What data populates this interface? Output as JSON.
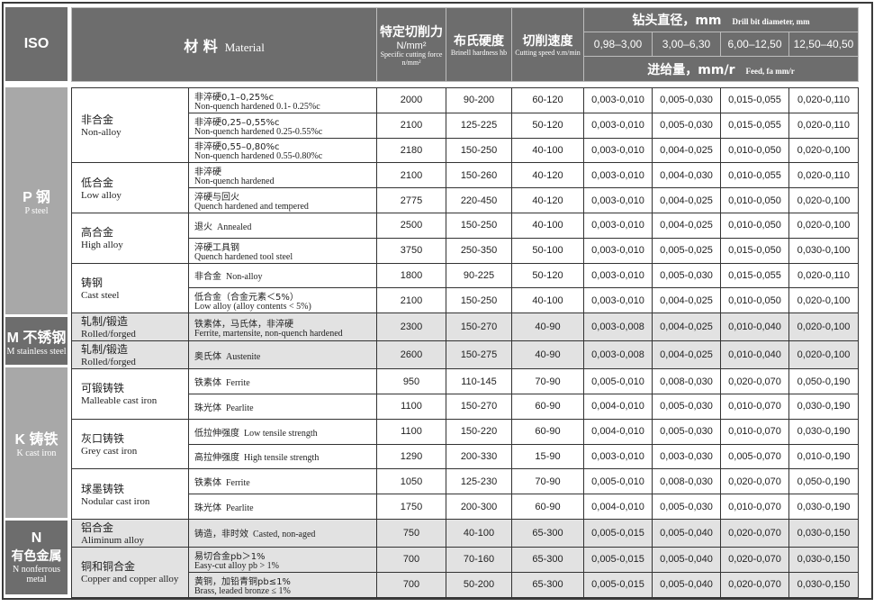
{
  "header": {
    "iso": "ISO",
    "material_zh": "材 料",
    "material_en": "Material",
    "force_zh": "特定切削力",
    "force_unit": "N/mm²",
    "force_en": "Specific cutting force n/mm²",
    "hb_zh": "布氏硬度",
    "hb_en": "Brinell hardness hb",
    "speed_zh": "切削速度",
    "speed_en": "Cutting speed v.m/min",
    "drill_zh": "钻头直径，mm",
    "drill_en": "Drill bit diameter, mm",
    "diameters": [
      "0,98–3,00",
      "3,00–6,30",
      "6,00–12,50",
      "12,50–40,50"
    ],
    "feed_zh": "进给量，mm/r",
    "feed_en": "Feed, fa mm/r"
  },
  "colors": {
    "header_bg": "#6d6d6d",
    "iso_light": "#a8a8a8",
    "shade_row": "#e2e2e2"
  },
  "iso_groups": [
    {
      "code": "P 钢",
      "sub": "P steel",
      "style": "light",
      "materials": [
        {
          "zh": "非合金",
          "en": "Non-alloy",
          "rows": [
            {
              "zh": "非淬硬0,1–0,25%c",
              "en": "Non-quench hardened 0.1- 0.25%c",
              "force": "2000",
              "hb": "90-200",
              "speed": "60-120",
              "feeds": [
                "0,003-0,010",
                "0,005-0,030",
                "0,015-0,055",
                "0,020-0,110"
              ]
            },
            {
              "zh": "非淬硬0,25–0,55%c",
              "en": "Non-quench hardened 0.25-0.55%c",
              "force": "2100",
              "hb": "125-225",
              "speed": "50-120",
              "feeds": [
                "0,003-0,010",
                "0,005-0,030",
                "0,015-0,055",
                "0,020-0,110"
              ]
            },
            {
              "zh": "非淬硬0,55–0,80%c",
              "en": "Non-quench hardened 0.55-0.80%c",
              "force": "2180",
              "hb": "150-250",
              "speed": "40-100",
              "feeds": [
                "0,003-0,010",
                "0,004-0,025",
                "0,010-0,050",
                "0,020-0,100"
              ]
            }
          ]
        },
        {
          "zh": "低合金",
          "en": "Low alloy",
          "rows": [
            {
              "zh": "非淬硬",
              "en": "Non-quench hardened",
              "force": "2100",
              "hb": "150-260",
              "speed": "40-120",
              "feeds": [
                "0,003-0,010",
                "0,004-0,030",
                "0,010-0,055",
                "0,020-0,110"
              ]
            },
            {
              "zh": "淬硬与回火",
              "en": "Quench hardened and tempered",
              "force": "2775",
              "hb": "220-450",
              "speed": "40-120",
              "feeds": [
                "0,003-0,010",
                "0,004-0,025",
                "0,010-0,050",
                "0,020-0,100"
              ]
            }
          ]
        },
        {
          "zh": "高合金",
          "en": "High alloy",
          "rows": [
            {
              "zh": "退火",
              "en": "Annealed",
              "inline": true,
              "force": "2500",
              "hb": "150-250",
              "speed": "40-100",
              "feeds": [
                "0,003-0,010",
                "0,004-0,025",
                "0,010-0,050",
                "0,020-0,100"
              ]
            },
            {
              "zh": "淬硬工具钢",
              "en": "Quench hardened tool steel",
              "force": "3750",
              "hb": "250-350",
              "speed": "50-100",
              "feeds": [
                "0,003-0,010",
                "0,005-0,025",
                "0,015-0,050",
                "0,030-0,100"
              ]
            }
          ]
        },
        {
          "zh": "铸钢",
          "en": "Cast steel",
          "rows": [
            {
              "zh": "非合金",
              "en": "Non-alloy",
              "inline": true,
              "force": "1800",
              "hb": "90-225",
              "speed": "50-120",
              "feeds": [
                "0,003-0,010",
                "0,005-0,030",
                "0,015-0,055",
                "0,020-0,110"
              ]
            },
            {
              "zh": "低合金（合金元素＜5%）",
              "en": "Low alloy (alloy contents < 5%)",
              "force": "2100",
              "hb": "150-250",
              "speed": "40-100",
              "feeds": [
                "0,003-0,010",
                "0,004-0,025",
                "0,010-0,050",
                "0,020-0,100"
              ]
            }
          ]
        }
      ]
    },
    {
      "code": "M 不锈钢",
      "sub": "M stainless steel",
      "style": "dark",
      "shade": true,
      "materials": [
        {
          "zh": "轧制/锻造",
          "en": "Rolled/forged",
          "rows": [
            {
              "zh": "铁素体，马氏体，非淬硬",
              "en": "Ferrite, martensite, non-quench hardened",
              "force": "2300",
              "hb": "150-270",
              "speed": "40-90",
              "feeds": [
                "0,003-0,008",
                "0,004-0,025",
                "0,010-0,040",
                "0,020-0,100"
              ]
            }
          ]
        },
        {
          "zh": "轧制/锻造",
          "en": "Rolled/forged",
          "rows": [
            {
              "zh": "奥氏体",
              "en": "Austenite",
              "inline": true,
              "force": "2600",
              "hb": "150-275",
              "speed": "40-90",
              "feeds": [
                "0,003-0,008",
                "0,004-0,025",
                "0,010-0,040",
                "0,020-0,100"
              ]
            }
          ]
        }
      ]
    },
    {
      "code": "K 铸铁",
      "sub": "K cast iron",
      "style": "light",
      "materials": [
        {
          "zh": "可锻铸铁",
          "en": "Malleable cast iron",
          "rows": [
            {
              "zh": "铁素体",
              "en": "Ferrite",
              "inline": true,
              "force": "950",
              "hb": "110-145",
              "speed": "70-90",
              "feeds": [
                "0,005-0,010",
                "0,008-0,030",
                "0,020-0,070",
                "0,050-0,190"
              ]
            },
            {
              "zh": "珠光体",
              "en": "Pearlite",
              "inline": true,
              "force": "1100",
              "hb": "150-270",
              "speed": "60-90",
              "feeds": [
                "0,004-0,010",
                "0,005-0,030",
                "0,010-0,070",
                "0,030-0,190"
              ]
            }
          ]
        },
        {
          "zh": "灰口铸铁",
          "en": "Grey cast iron",
          "rows": [
            {
              "zh": "低拉伸强度",
              "en": "Low tensile strength",
              "inline": true,
              "force": "1100",
              "hb": "150-220",
              "speed": "60-90",
              "feeds": [
                "0,004-0,010",
                "0,005-0,030",
                "0,010-0,070",
                "0,030-0,190"
              ]
            },
            {
              "zh": "高拉伸强度",
              "en": "High tensile strength",
              "inline": true,
              "force": "1290",
              "hb": "200-330",
              "speed": "15-90",
              "feeds": [
                "0,003-0,010",
                "0,003-0,030",
                "0,005-0,070",
                "0,010-0,190"
              ]
            }
          ]
        },
        {
          "zh": "球墨铸铁",
          "en": "Nodular cast iron",
          "rows": [
            {
              "zh": "铁素体",
              "en": "Ferrite",
              "inline": true,
              "force": "1050",
              "hb": "125-230",
              "speed": "70-90",
              "feeds": [
                "0,005-0,010",
                "0,008-0,030",
                "0,020-0,070",
                "0,050-0,190"
              ]
            },
            {
              "zh": "珠光体",
              "en": "Pearlite",
              "inline": true,
              "force": "1750",
              "hb": "200-300",
              "speed": "60-90",
              "feeds": [
                "0,004-0,010",
                "0,005-0,030",
                "0,010-0,070",
                "0,030-0,190"
              ]
            }
          ]
        }
      ]
    },
    {
      "code": "N",
      "code2": "有色金属",
      "sub": "N nonferrous metal",
      "style": "dark",
      "shade": true,
      "materials": [
        {
          "zh": "铝合金",
          "en": "Aliminum alloy",
          "rows": [
            {
              "zh": "铸造，非时效",
              "en": "Casted, non-aged",
              "inline": true,
              "force": "750",
              "hb": "40-100",
              "speed": "65-300",
              "feeds": [
                "0,005-0,015",
                "0,005-0,040",
                "0,020-0,070",
                "0,030-0,150"
              ]
            }
          ]
        },
        {
          "zh": "铜和铜合金",
          "en": "Copper and copper alloy",
          "rows": [
            {
              "zh": "易切合金pb＞1%",
              "en": "Easy-cut alloy pb > 1%",
              "force": "700",
              "hb": "70-160",
              "speed": "65-300",
              "feeds": [
                "0,005-0,015",
                "0,005-0,040",
                "0,020-0,070",
                "0,030-0,150"
              ]
            },
            {
              "zh": "黄铜，加铅青铜pb≤1%",
              "en": "Brass, leaded bronze ≤ 1%",
              "force": "700",
              "hb": "50-200",
              "speed": "65-300",
              "feeds": [
                "0,005-0,015",
                "0,005-0,040",
                "0,020-0,070",
                "0,030-0,150"
              ]
            }
          ]
        }
      ]
    }
  ]
}
